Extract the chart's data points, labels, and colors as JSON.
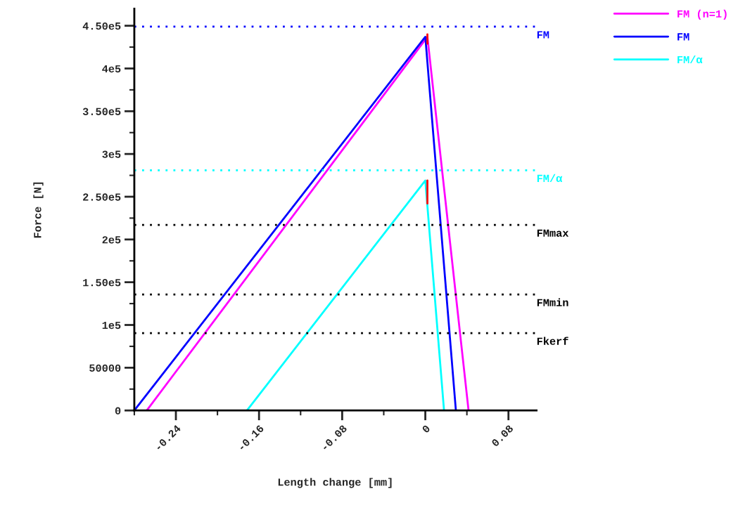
{
  "chart_data": {
    "type": "line",
    "xlabel": "Length change [mm]",
    "ylabel": "Force [N]",
    "xlim": [
      -0.28,
      0.107
    ],
    "ylim": [
      0,
      470000
    ],
    "xticks": [
      {
        "value": -0.28,
        "label": null
      },
      -0.24,
      {
        "value": -0.2,
        "label": null
      },
      -0.16,
      {
        "value": -0.12,
        "label": null
      },
      -0.08,
      {
        "value": -0.04,
        "label": null
      },
      0,
      {
        "value": 0.04,
        "label": null
      },
      0.08
    ],
    "yticks": [
      0,
      {
        "value": 25000,
        "label": null
      },
      50000,
      {
        "value": 75000,
        "label": null
      },
      {
        "value": 100000,
        "label": "1e5"
      },
      {
        "value": 125000,
        "label": null
      },
      {
        "value": 150000,
        "label": "1.50e5"
      },
      {
        "value": 175000,
        "label": null
      },
      {
        "value": 200000,
        "label": "2e5"
      },
      {
        "value": 225000,
        "label": null
      },
      {
        "value": 250000,
        "label": "2.50e5"
      },
      {
        "value": 275000,
        "label": null
      },
      {
        "value": 300000,
        "label": "3e5"
      },
      {
        "value": 325000,
        "label": null
      },
      {
        "value": 350000,
        "label": "3.50e5"
      },
      {
        "value": 375000,
        "label": null
      },
      {
        "value": 400000,
        "label": "4e5"
      },
      {
        "value": 425000,
        "label": null
      },
      {
        "value": 450000,
        "label": "4.50e5"
      }
    ],
    "grid": false,
    "legend": "top right",
    "line_style": "solid",
    "marker": "none",
    "series": [
      {
        "name": "FM (n=1)",
        "color": "#ff00ff",
        "x": [
          -0.268,
          0.002,
          0.0416
        ],
        "values": [
          0,
          437000,
          0
        ]
      },
      {
        "name": "FM",
        "color": "#0000ff",
        "x": [
          -0.28,
          0.0,
          0.0294
        ],
        "values": [
          0,
          437000,
          0
        ]
      },
      {
        "name": "FM/α",
        "color": "#00ffff",
        "x": [
          -0.1716,
          0.0,
          0.018
        ],
        "values": [
          0,
          269000,
          0
        ]
      },
      {
        "color": "#ff0000",
        "x": [
          0.002,
          0.002
        ],
        "values": [
          440000,
          429000
        ]
      },
      {
        "color": "#ff0000",
        "x": [
          0.002,
          0.002
        ],
        "values": [
          269000,
          242000
        ]
      }
    ],
    "ref_lines": [
      {
        "axis": "y",
        "value": 449000,
        "label": "FM",
        "color": "#0000ff",
        "line_style": "dotted"
      },
      {
        "axis": "y",
        "value": 281000,
        "label": "FM/α",
        "color": "#00ffff",
        "line_style": "dotted"
      },
      {
        "axis": "y",
        "value": 217000,
        "label": "FMmax",
        "color": "#000000",
        "line_style": "dotted"
      },
      {
        "axis": "y",
        "value": 135700,
        "label": "FMmin",
        "color": "#000000",
        "line_style": "dotted"
      },
      {
        "axis": "y",
        "value": 90500,
        "label": "Fkerf",
        "color": "#000000",
        "line_style": "dotted"
      }
    ]
  }
}
